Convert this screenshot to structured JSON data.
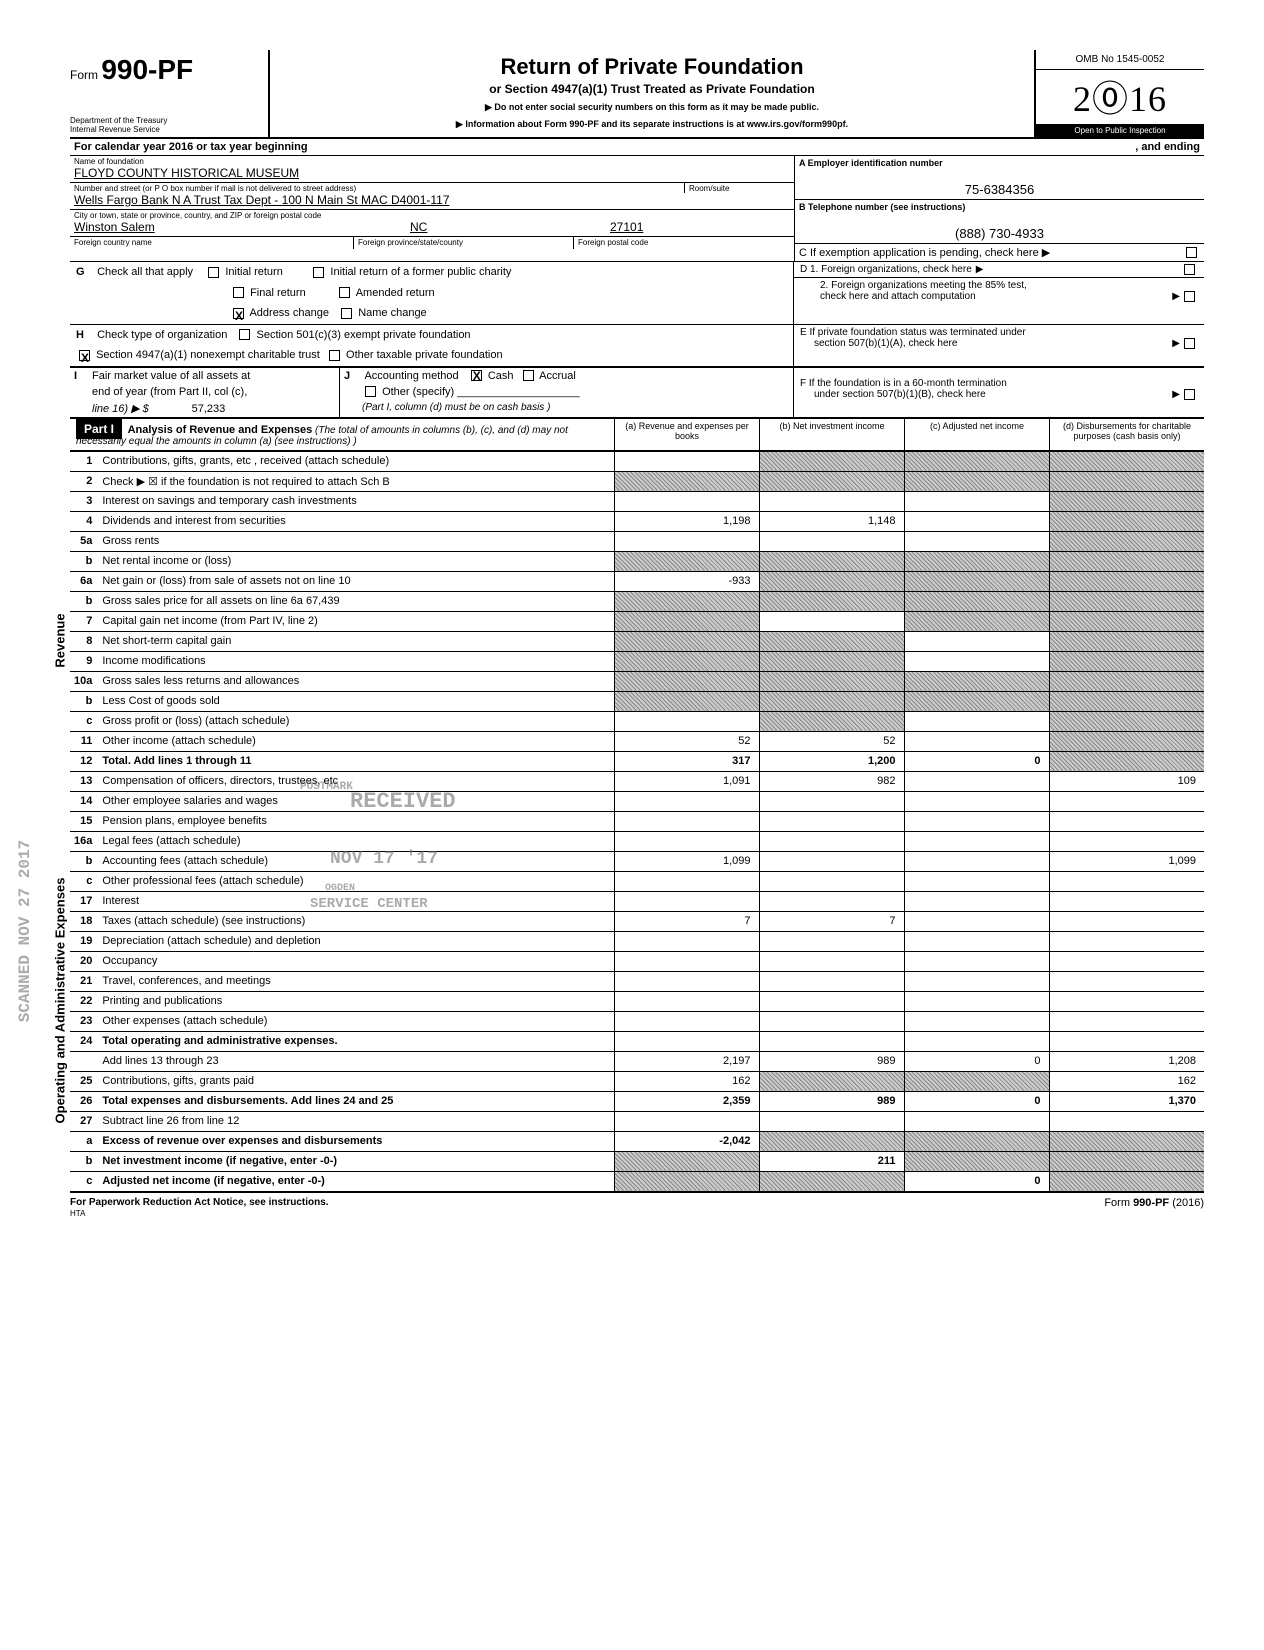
{
  "header": {
    "form_prefix": "Form",
    "form_no": "990-PF",
    "dept1": "Department of the Treasury",
    "dept2": "Internal Revenue Service",
    "title": "Return of Private Foundation",
    "subtitle": "or Section 4947(a)(1) Trust Treated as Private Foundation",
    "instr1": "▶  Do not enter social security numbers on this form as it may be made public.",
    "instr2": "▶     Information about Form 990-PF and its separate instructions is at www.irs.gov/form990pf.",
    "omb": "OMB No 1545-0052",
    "year": "2016",
    "ptoi": "Open to Public Inspection"
  },
  "calendar": {
    "left": "For calendar year 2016 or tax year beginning",
    "right": ", and ending"
  },
  "id": {
    "name_lbl": "Name of foundation",
    "name": "FLOYD COUNTY HISTORICAL MUSEUM",
    "addr_lbl": "Number and street (or P O  box number if mail is not delivered to street address)",
    "room_lbl": "Room/suite",
    "addr": "Wells Fargo Bank N A  Trust Tax Dept - 100 N Main St MAC D4001-117",
    "city_lbl": "City or town, state or province, country, and ZIP or foreign postal code",
    "city": "Winston Salem",
    "state": "NC",
    "zip": "27101",
    "fc_lbl": "Foreign country name",
    "fp_lbl": "Foreign province/state/county",
    "fz_lbl": "Foreign postal code",
    "ein_lbl": "A Employer identification number",
    "ein": "75-6384356",
    "tel_lbl": "B Telephone number (see instructions)",
    "tel": "(888) 730-4933",
    "c_lbl": "C  If exemption application is pending, check here  ▶"
  },
  "g": {
    "lead": "G",
    "check_all": "Check all that apply",
    "initial": "Initial return",
    "initial_former": "Initial return of a former public charity",
    "final": "Final return",
    "amended": "Amended return",
    "address": "Address change",
    "namechg": "Name change",
    "d1": "D  1. Foreign organizations, check here",
    "d2a": "2. Foreign organizations meeting the 85% test,",
    "d2b": "check here and attach computation",
    "e1": "E   If private foundation status was terminated under",
    "e2": "section 507(b)(1)(A), check here",
    "f1": "F   If the foundation is in a 60-month termination",
    "f2": "under section 507(b)(1)(B), check here"
  },
  "h": {
    "lead": "H",
    "text": "Check type of organization",
    "s501": "Section 501(c)(3) exempt private foundation",
    "x_lead": "X",
    "s4947": "Section 4947(a)(1) nonexempt charitable trust",
    "other_tax": "Other taxable private foundation"
  },
  "i": {
    "lead": "I",
    "l1": "Fair market value of all assets at",
    "l2": "end of year (from Part II, col  (c),",
    "l3": "line 16) ▶  $",
    "val": "57,233",
    "j_lead": "J",
    "j_text": "Accounting method",
    "cash": "Cash",
    "accrual": "Accrual",
    "other": "Other (specify)",
    "note": "(Part I, column (d) must be on cash basis )"
  },
  "part1": {
    "tab": "Part I",
    "head": "Analysis of Revenue and Expenses",
    "head_paren": "(The total of amounts in columns (b), (c), and (d) may not necessarily equal the amounts in column (a) (see instructions) )",
    "col_a": "(a) Revenue and expenses per books",
    "col_b": "(b) Net investment income",
    "col_c": "(c) Adjusted net income",
    "col_d": "(d) Disbursements for charitable purposes (cash basis only)",
    "side_rev": "Revenue",
    "side_exp": "Operating and Administrative Expenses"
  },
  "rows": [
    {
      "ln": "1",
      "desc": "Contributions, gifts, grants, etc , received (attach schedule)",
      "a": "",
      "b": "",
      "c": "",
      "d": "",
      "sb": true,
      "sc": true,
      "sd": true
    },
    {
      "ln": "2",
      "desc": "Check ▶ ☒ if the foundation is not required to attach Sch  B",
      "a": "",
      "b": "",
      "c": "",
      "d": "",
      "sa": true,
      "sb": true,
      "sc": true,
      "sd": true
    },
    {
      "ln": "3",
      "desc": "Interest on savings and temporary cash investments",
      "a": "",
      "b": "",
      "c": "",
      "d": "",
      "sd": true
    },
    {
      "ln": "4",
      "desc": "Dividends and interest from securities",
      "a": "1,198",
      "b": "1,148",
      "c": "",
      "d": "",
      "sd": true
    },
    {
      "ln": "5a",
      "desc": "Gross rents",
      "a": "",
      "b": "",
      "c": "",
      "d": "",
      "sd": true
    },
    {
      "ln": "b",
      "desc": "Net rental income or (loss)",
      "a": "",
      "b": "",
      "c": "",
      "d": "",
      "sa": true,
      "sb": true,
      "sc": true,
      "sd": true
    },
    {
      "ln": "6a",
      "desc": "Net gain or (loss) from sale of assets not on line 10",
      "a": "-933",
      "b": "",
      "c": "",
      "d": "",
      "sb": true,
      "sc": true,
      "sd": true
    },
    {
      "ln": "b",
      "desc": "Gross sales price for all assets on line 6a                         67,439",
      "a": "",
      "b": "",
      "c": "",
      "d": "",
      "sa": true,
      "sb": true,
      "sc": true,
      "sd": true
    },
    {
      "ln": "7",
      "desc": "Capital gain net income (from Part IV, line 2)",
      "a": "",
      "b": "",
      "c": "",
      "d": "",
      "sa": true,
      "sc": true,
      "sd": true
    },
    {
      "ln": "8",
      "desc": "Net short-term capital gain",
      "a": "",
      "b": "",
      "c": "",
      "d": "",
      "sa": true,
      "sb": true,
      "sd": true
    },
    {
      "ln": "9",
      "desc": "Income modifications",
      "a": "",
      "b": "",
      "c": "",
      "d": "",
      "sa": true,
      "sb": true,
      "sd": true
    },
    {
      "ln": "10a",
      "desc": "Gross sales less returns and allowances",
      "a": "",
      "b": "",
      "c": "",
      "d": "",
      "sa": true,
      "sb": true,
      "sc": true,
      "sd": true
    },
    {
      "ln": "b",
      "desc": "Less Cost of goods sold",
      "a": "",
      "b": "",
      "c": "",
      "d": "",
      "sa": true,
      "sb": true,
      "sc": true,
      "sd": true
    },
    {
      "ln": "c",
      "desc": "Gross profit or (loss) (attach schedule)",
      "a": "",
      "b": "",
      "c": "",
      "d": "",
      "sb": true,
      "sd": true
    },
    {
      "ln": "11",
      "desc": "Other income (attach schedule)",
      "a": "52",
      "b": "52",
      "c": "",
      "d": "",
      "sd": true
    },
    {
      "ln": "12",
      "desc": "Total. Add lines 1 through 11",
      "a": "317",
      "b": "1,200",
      "c": "0",
      "d": "",
      "total": true,
      "sd": true
    },
    {
      "ln": "13",
      "desc": "Compensation of officers, directors, trustees, etc",
      "a": "1,091",
      "b": "982",
      "c": "",
      "d": "109"
    },
    {
      "ln": "14",
      "desc": "Other employee salaries and wages",
      "a": "",
      "b": "",
      "c": "",
      "d": ""
    },
    {
      "ln": "15",
      "desc": "Pension plans, employee benefits",
      "a": "",
      "b": "",
      "c": "",
      "d": ""
    },
    {
      "ln": "16a",
      "desc": "Legal fees (attach schedule)",
      "a": "",
      "b": "",
      "c": "",
      "d": ""
    },
    {
      "ln": "b",
      "desc": "Accounting fees (attach schedule)",
      "a": "1,099",
      "b": "",
      "c": "",
      "d": "1,099"
    },
    {
      "ln": "c",
      "desc": "Other professional fees (attach schedule)",
      "a": "",
      "b": "",
      "c": "",
      "d": ""
    },
    {
      "ln": "17",
      "desc": "Interest",
      "a": "",
      "b": "",
      "c": "",
      "d": ""
    },
    {
      "ln": "18",
      "desc": "Taxes (attach schedule) (see instructions)",
      "a": "7",
      "b": "7",
      "c": "",
      "d": ""
    },
    {
      "ln": "19",
      "desc": "Depreciation (attach schedule) and depletion",
      "a": "",
      "b": "",
      "c": "",
      "d": ""
    },
    {
      "ln": "20",
      "desc": "Occupancy",
      "a": "",
      "b": "",
      "c": "",
      "d": ""
    },
    {
      "ln": "21",
      "desc": "Travel, conferences, and meetings",
      "a": "",
      "b": "",
      "c": "",
      "d": ""
    },
    {
      "ln": "22",
      "desc": "Printing and publications",
      "a": "",
      "b": "",
      "c": "",
      "d": ""
    },
    {
      "ln": "23",
      "desc": "Other expenses (attach schedule)",
      "a": "",
      "b": "",
      "c": "",
      "d": ""
    },
    {
      "ln": "24",
      "desc": "Total operating and administrative expenses.",
      "a": "",
      "b": "",
      "c": "",
      "d": "",
      "total": true
    },
    {
      "ln": "",
      "desc": "Add lines 13 through 23",
      "a": "2,197",
      "b": "989",
      "c": "0",
      "d": "1,208"
    },
    {
      "ln": "25",
      "desc": "Contributions, gifts, grants paid",
      "a": "162",
      "b": "",
      "c": "",
      "d": "162",
      "sb": true,
      "sc": true
    },
    {
      "ln": "26",
      "desc": "Total expenses and disbursements. Add lines 24 and 25",
      "a": "2,359",
      "b": "989",
      "c": "0",
      "d": "1,370",
      "total": true
    },
    {
      "ln": "27",
      "desc": "Subtract line 26 from line 12",
      "a": "",
      "b": "",
      "c": "",
      "d": ""
    },
    {
      "ln": "a",
      "desc": "Excess of revenue over expenses and disbursements",
      "a": "-2,042",
      "b": "",
      "c": "",
      "d": "",
      "total": true,
      "sb": true,
      "sc": true,
      "sd": true
    },
    {
      "ln": "b",
      "desc": "Net investment income (if negative, enter -0-)",
      "a": "",
      "b": "211",
      "c": "",
      "d": "",
      "total": true,
      "sa": true,
      "sc": true,
      "sd": true
    },
    {
      "ln": "c",
      "desc": "Adjusted net income (if negative, enter -0-)",
      "a": "",
      "b": "",
      "c": "0",
      "d": "",
      "total": true,
      "sa": true,
      "sb": true,
      "sd": true
    }
  ],
  "stamps": {
    "received": "RECEIVED",
    "date": "NOV 17 '17",
    "postmark": "POSTMARK",
    "service": "SERVICE CENTER",
    "ogden": "OGDEN",
    "side_date": "SCANNED  NOV 27 2017"
  },
  "footer": {
    "left": "For Paperwork Reduction Act Notice, see instructions.",
    "mid": "HTA",
    "right": "Form 990-PF (2016)"
  }
}
